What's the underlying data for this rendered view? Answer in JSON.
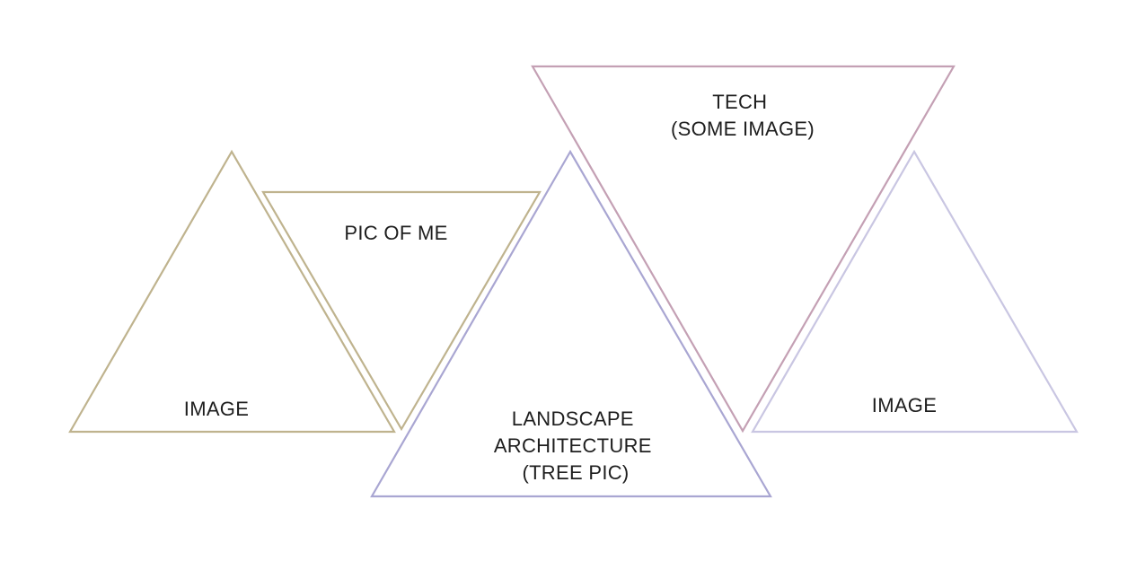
{
  "triangles": [
    {
      "id": "image-left",
      "lines": [
        "IMAGE"
      ],
      "color": "#bfb38e"
    },
    {
      "id": "pic-of-me",
      "lines": [
        "PIC OF ME"
      ],
      "color": "#bfb38e"
    },
    {
      "id": "landscape-architecture",
      "lines": [
        "LANDSCAPE",
        "ARCHITECTURE",
        "(TREE PIC)"
      ],
      "color": "#a9a6d2"
    },
    {
      "id": "tech",
      "lines": [
        "TECH",
        "(SOME IMAGE)"
      ],
      "color": "#c4a0b4"
    },
    {
      "id": "image-right",
      "lines": [
        "IMAGE"
      ],
      "color": "#c9c6e2"
    }
  ]
}
